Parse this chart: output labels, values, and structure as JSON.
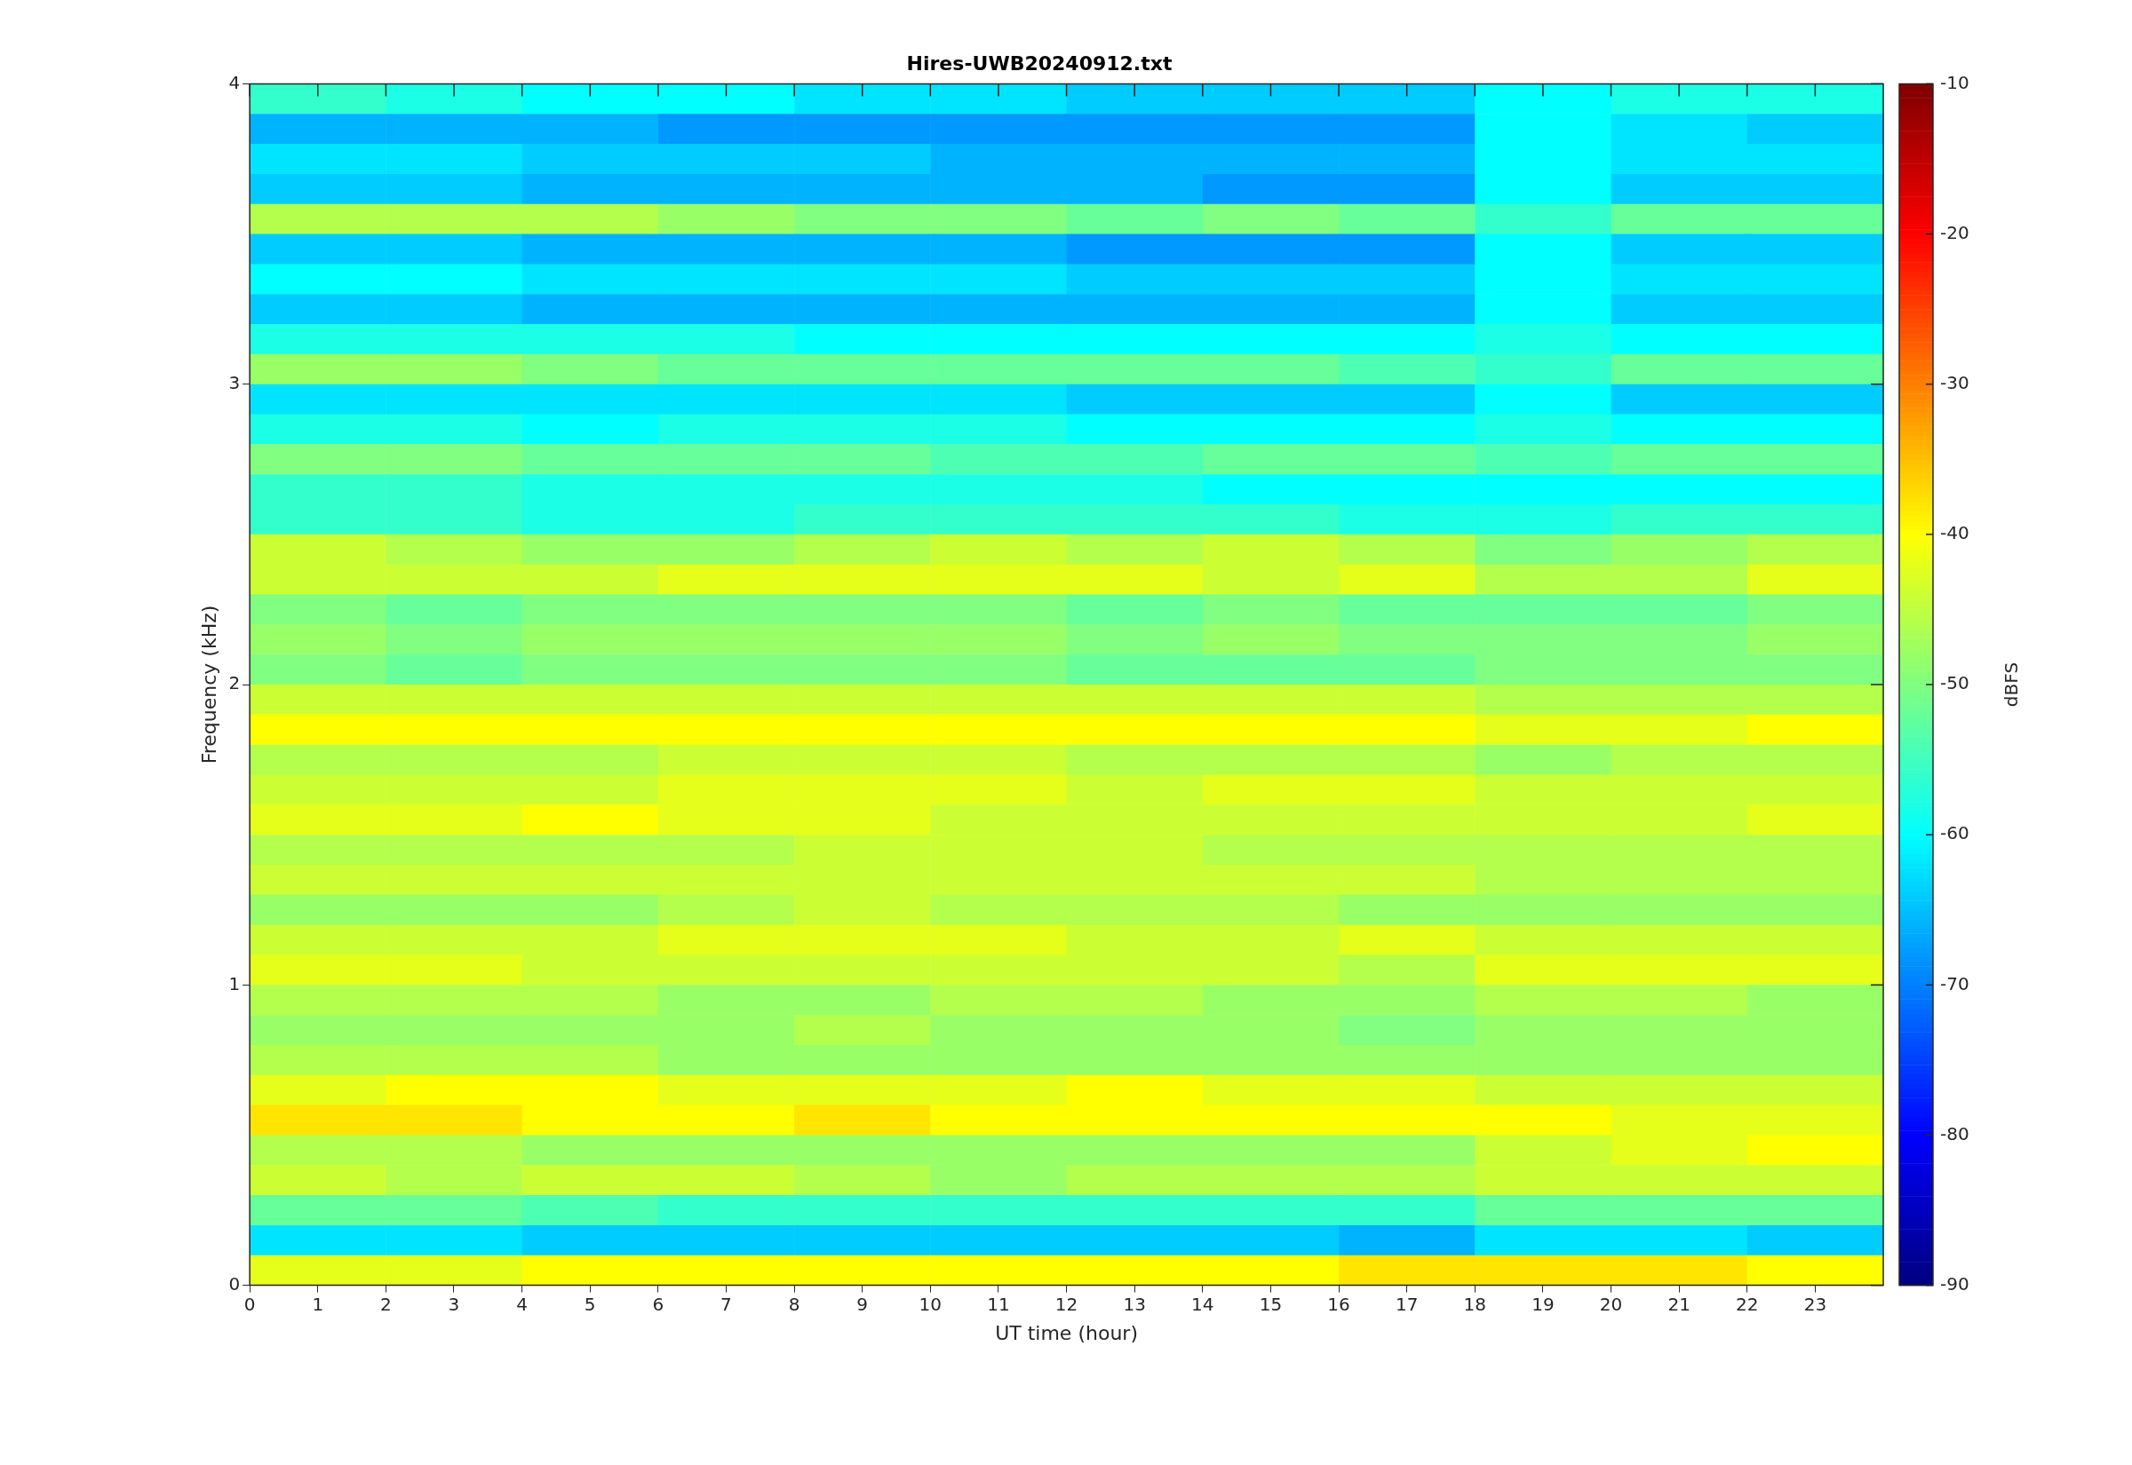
{
  "chart_data": {
    "type": "heatmap",
    "title": "Hires-UWB20240912.txt",
    "xlabel": "UT time (hour)",
    "ylabel": "Frequency (kHz)",
    "clabel": "dBFS",
    "xlim": [
      0,
      24
    ],
    "xticks": [
      0,
      1,
      2,
      3,
      4,
      5,
      6,
      7,
      8,
      9,
      10,
      11,
      12,
      13,
      14,
      15,
      16,
      17,
      18,
      19,
      20,
      21,
      22,
      23
    ],
    "ylim": [
      0,
      4
    ],
    "yticks": [
      0,
      1,
      2,
      3,
      4
    ],
    "clim": [
      -90,
      -10
    ],
    "cticks": [
      -90,
      -80,
      -70,
      -60,
      -50,
      -40,
      -30,
      -20,
      -10
    ],
    "grid": false,
    "cells": [
      [
        -56,
        -58,
        -60,
        -60,
        -62,
        -62,
        -64,
        -64,
        -64,
        -60,
        -58,
        -58
      ],
      [
        -66,
        -66,
        -66,
        -68,
        -68,
        -68,
        -68,
        -68,
        -68,
        -60,
        -62,
        -64
      ],
      [
        -62,
        -62,
        -64,
        -64,
        -64,
        -66,
        -66,
        -66,
        -66,
        -60,
        -62,
        -62
      ],
      [
        -64,
        -64,
        -66,
        -66,
        -66,
        -66,
        -66,
        -68,
        -68,
        -60,
        -64,
        -64
      ],
      [
        -46,
        -46,
        -46,
        -48,
        -50,
        -50,
        -52,
        -50,
        -52,
        -56,
        -52,
        -52
      ],
      [
        -64,
        -64,
        -66,
        -66,
        -66,
        -66,
        -68,
        -68,
        -68,
        -60,
        -64,
        -64
      ],
      [
        -60,
        -60,
        -62,
        -62,
        -62,
        -62,
        -64,
        -64,
        -64,
        -60,
        -62,
        -62
      ],
      [
        -64,
        -64,
        -66,
        -66,
        -66,
        -66,
        -66,
        -66,
        -66,
        -60,
        -64,
        -64
      ],
      [
        -58,
        -58,
        -58,
        -58,
        -60,
        -60,
        -60,
        -60,
        -60,
        -58,
        -60,
        -60
      ],
      [
        -48,
        -48,
        -50,
        -52,
        -52,
        -52,
        -52,
        -52,
        -54,
        -56,
        -52,
        -52
      ],
      [
        -62,
        -62,
        -62,
        -62,
        -62,
        -62,
        -64,
        -64,
        -64,
        -60,
        -64,
        -64
      ],
      [
        -58,
        -58,
        -60,
        -58,
        -58,
        -58,
        -60,
        -60,
        -60,
        -58,
        -60,
        -60
      ],
      [
        -50,
        -50,
        -52,
        -52,
        -52,
        -54,
        -54,
        -52,
        -52,
        -54,
        -52,
        -52
      ],
      [
        -56,
        -56,
        -58,
        -58,
        -58,
        -58,
        -58,
        -60,
        -60,
        -60,
        -60,
        -60
      ],
      [
        -56,
        -56,
        -58,
        -58,
        -56,
        -56,
        -56,
        -56,
        -58,
        -58,
        -56,
        -56
      ],
      [
        -44,
        -46,
        -48,
        -48,
        -46,
        -44,
        -46,
        -44,
        -46,
        -50,
        -48,
        -46
      ],
      [
        -44,
        -44,
        -44,
        -42,
        -42,
        -42,
        -42,
        -44,
        -42,
        -46,
        -46,
        -42
      ],
      [
        -50,
        -52,
        -50,
        -50,
        -50,
        -50,
        -52,
        -50,
        -52,
        -52,
        -52,
        -50
      ],
      [
        -48,
        -50,
        -48,
        -48,
        -48,
        -48,
        -50,
        -48,
        -50,
        -50,
        -50,
        -48
      ],
      [
        -50,
        -52,
        -50,
        -50,
        -50,
        -50,
        -52,
        -52,
        -52,
        -50,
        -50,
        -50
      ],
      [
        -44,
        -44,
        -44,
        -44,
        -44,
        -44,
        -44,
        -44,
        -44,
        -46,
        -46,
        -46
      ],
      [
        -40,
        -40,
        -40,
        -40,
        -40,
        -40,
        -40,
        -40,
        -40,
        -42,
        -42,
        -40
      ],
      [
        -46,
        -46,
        -46,
        -44,
        -44,
        -44,
        -46,
        -46,
        -46,
        -48,
        -46,
        -46
      ],
      [
        -44,
        -44,
        -44,
        -42,
        -42,
        -42,
        -44,
        -42,
        -42,
        -44,
        -44,
        -44
      ],
      [
        -42,
        -42,
        -40,
        -42,
        -42,
        -44,
        -44,
        -44,
        -44,
        -44,
        -44,
        -42
      ],
      [
        -46,
        -46,
        -46,
        -46,
        -44,
        -44,
        -44,
        -46,
        -46,
        -46,
        -46,
        -46
      ],
      [
        -44,
        -44,
        -44,
        -44,
        -44,
        -44,
        -44,
        -44,
        -44,
        -46,
        -46,
        -46
      ],
      [
        -48,
        -48,
        -48,
        -46,
        -44,
        -46,
        -46,
        -46,
        -48,
        -48,
        -48,
        -48
      ],
      [
        -44,
        -44,
        -44,
        -42,
        -42,
        -42,
        -44,
        -44,
        -42,
        -44,
        -44,
        -44
      ],
      [
        -42,
        -42,
        -44,
        -44,
        -44,
        -44,
        -44,
        -44,
        -46,
        -42,
        -42,
        -42
      ],
      [
        -46,
        -46,
        -46,
        -48,
        -48,
        -46,
        -46,
        -48,
        -48,
        -46,
        -46,
        -48
      ],
      [
        -48,
        -48,
        -48,
        -48,
        -46,
        -48,
        -48,
        -48,
        -50,
        -48,
        -48,
        -48
      ],
      [
        -46,
        -46,
        -46,
        -48,
        -48,
        -48,
        -48,
        -48,
        -48,
        -48,
        -48,
        -48
      ],
      [
        -42,
        -40,
        -40,
        -42,
        -42,
        -42,
        -40,
        -42,
        -42,
        -44,
        -44,
        -44
      ],
      [
        -38,
        -38,
        -40,
        -40,
        -38,
        -40,
        -40,
        -40,
        -40,
        -40,
        -42,
        -42
      ],
      [
        -46,
        -46,
        -48,
        -48,
        -48,
        -48,
        -48,
        -48,
        -48,
        -44,
        -42,
        -40
      ],
      [
        -44,
        -46,
        -44,
        -44,
        -46,
        -48,
        -46,
        -46,
        -46,
        -44,
        -44,
        -44
      ],
      [
        -52,
        -52,
        -54,
        -56,
        -56,
        -56,
        -56,
        -56,
        -56,
        -52,
        -52,
        -52
      ],
      [
        -62,
        -62,
        -64,
        -64,
        -64,
        -64,
        -64,
        -64,
        -66,
        -62,
        -62,
        -64
      ],
      [
        -42,
        -42,
        -40,
        -40,
        -40,
        -40,
        -40,
        -40,
        -38,
        -38,
        -38,
        -40
      ]
    ]
  }
}
